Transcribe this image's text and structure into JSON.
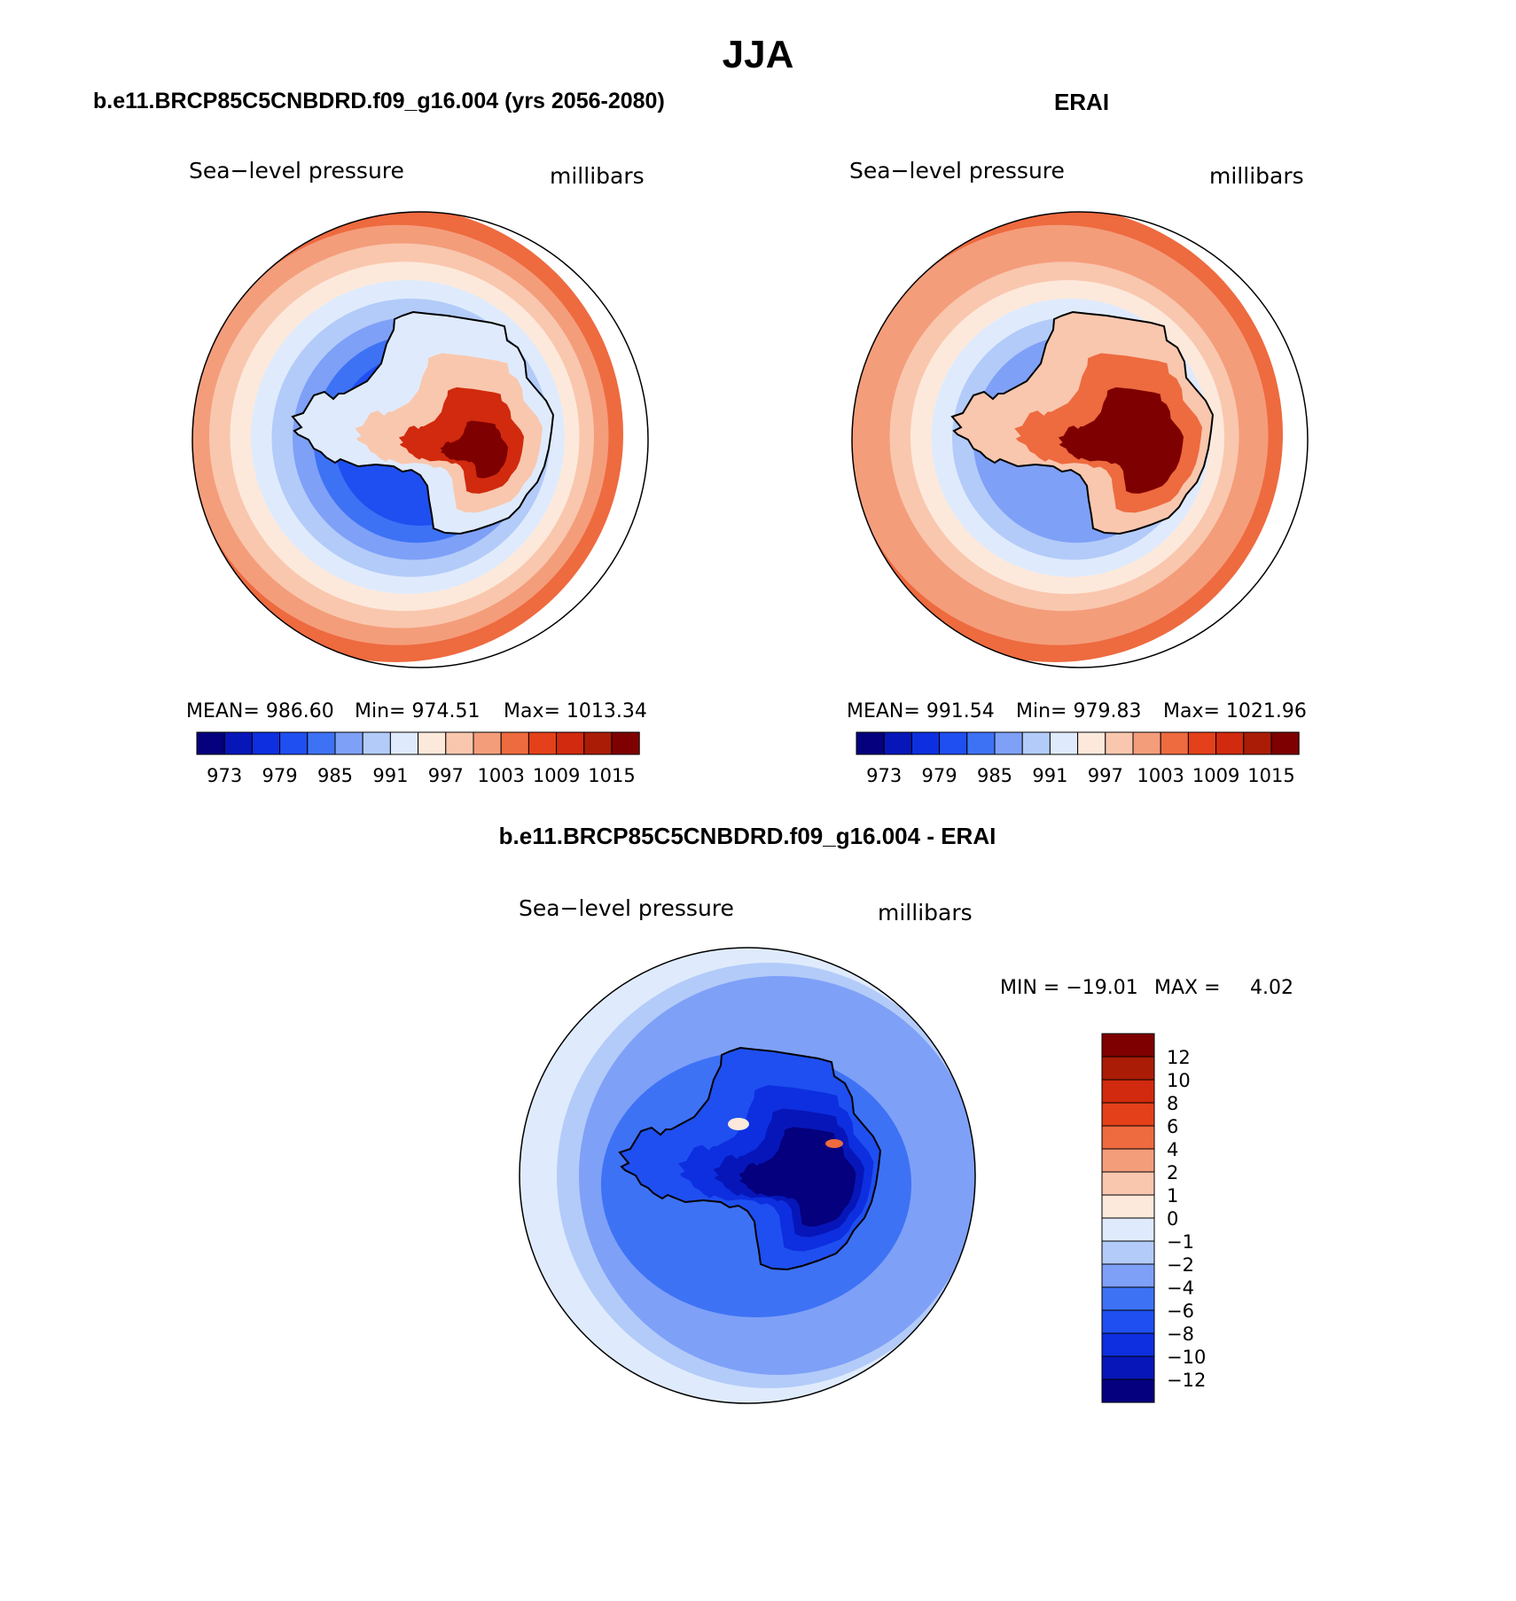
{
  "figure": {
    "title": "JJA",
    "difference_title": "b.e11.BRCP85C5CNBDRD.f09_g16.004 - ERAI"
  },
  "colors": {
    "abs_palette": [
      "#04007e",
      "#0716b8",
      "#0d2fe0",
      "#1f4ff0",
      "#3e72f5",
      "#7ea0f7",
      "#b3cbf9",
      "#dfebfc",
      "#fde9db",
      "#f9c7ae",
      "#f49d7b",
      "#ee6a3f",
      "#e4401a",
      "#d12a0e",
      "#aa1c05",
      "#7f0000"
    ],
    "diff_palette": [
      "#04007e",
      "#0716b8",
      "#0d2fe0",
      "#1f4ff0",
      "#3e72f5",
      "#7ea0f7",
      "#b3cbf9",
      "#dfebfc",
      "#fde9db",
      "#f9c7ae",
      "#f49d7b",
      "#ee6a3f",
      "#e4401a",
      "#d12a0e",
      "#aa1c05",
      "#7f0000"
    ],
    "coastline": "#000000"
  },
  "chart_data": [
    {
      "type": "heatmap",
      "projection": "south-polar-stereographic",
      "title": "b.e11.BRCP85C5CNBDRD.f09_g16.004 (yrs 2056-2080)",
      "left_label": "Sea−level pressure",
      "right_label": "millibars",
      "stats": {
        "mean_text": "MEAN=  986.60",
        "min_text": "Min=  974.51",
        "max_text": "Max=  1013.34"
      },
      "levels": [
        970,
        973,
        976,
        979,
        982,
        985,
        988,
        991,
        994,
        997,
        1000,
        1003,
        1006,
        1009,
        1012,
        1015
      ],
      "tick_labels": [
        "973",
        "979",
        "985",
        "991",
        "997",
        "1003",
        "1009",
        "1015"
      ],
      "field": {
        "ocean_ring_min": 976,
        "ocean_edge": 1000,
        "continent_peak": 1012
      }
    },
    {
      "type": "heatmap",
      "projection": "south-polar-stereographic",
      "title": "ERAI",
      "left_label": "Sea−level pressure",
      "right_label": "millibars",
      "stats": {
        "mean_text": "MEAN=  991.54",
        "min_text": "Min=  979.83",
        "max_text": "Max=  1021.96"
      },
      "levels": [
        970,
        973,
        976,
        979,
        982,
        985,
        988,
        991,
        994,
        997,
        1000,
        1003,
        1006,
        1009,
        1012,
        1015
      ],
      "tick_labels": [
        "973",
        "979",
        "985",
        "991",
        "997",
        "1003",
        "1009",
        "1015"
      ],
      "field": {
        "ocean_ring_min": 982,
        "ocean_edge": 1002,
        "continent_peak": 1021
      }
    },
    {
      "type": "heatmap",
      "projection": "south-polar-stereographic",
      "title": "b.e11.BRCP85C5CNBDRD.f09_g16.004 - ERAI",
      "left_label": "Sea−level pressure",
      "right_label": "millibars",
      "stats": {
        "min_text": "MIN = −19.01",
        "max_text": "MAX =",
        "max_value": "4.02"
      },
      "levels": [
        12,
        10,
        8,
        6,
        4,
        2,
        1,
        0,
        -1,
        -2,
        -4,
        -6,
        -8,
        -10,
        -12
      ],
      "tick_labels": [
        "12",
        "10",
        "8",
        "6",
        "4",
        "2",
        "1",
        "0",
        "−1",
        "−2",
        "−4",
        "−6",
        "−8",
        "−10",
        "−12"
      ],
      "field": {
        "ocean_value": -3,
        "continent_min": -19,
        "local_max": 4
      }
    }
  ]
}
